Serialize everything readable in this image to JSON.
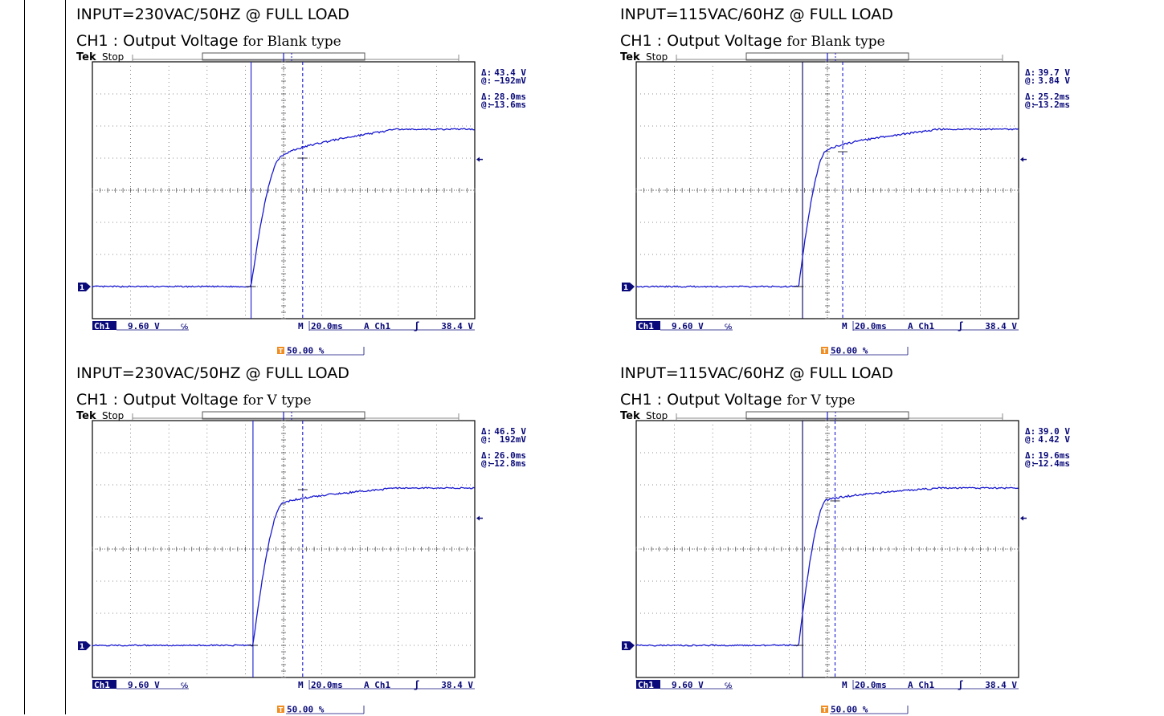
{
  "chart_data": [
    {
      "type": "line",
      "heading": "INPUT=230VAC/50HZ @ FULL LOAD",
      "subtitle_main": "CH1 : Output Voltage",
      "subtitle_suffix": "for Blank type",
      "scope": {
        "brand": "Tek",
        "state": "Stop",
        "ch_label": "Ch1",
        "ch_scale": "9.60 V",
        "bw_symbol": "℅",
        "timebase": "M 20.0ms",
        "trig_src": "A  Ch1",
        "trig_slope": "ʃ",
        "trig_level": "38.4 V",
        "trig_pos": "50.00 %",
        "meas_delta_v_sym": "Δ:",
        "meas_delta_v": "43.4 V",
        "meas_at_v_sym": "@:",
        "meas_at_v": "−192mV",
        "meas_delta_t_sym": "Δ:",
        "meas_delta_t": "28.0ms",
        "meas_at_t_sym": "@:",
        "meas_at_t": "−13.6ms",
        "ch_marker": "1",
        "trig_marker": "T"
      },
      "trace": {
        "start_div": 4.15,
        "rise_div": 0.75,
        "base_div": 0.0,
        "knee_div": 4.0,
        "final_div": 4.9
      },
      "cursor_left_div": 4.15,
      "cursor_right_div": 5.5
    },
    {
      "type": "line",
      "heading": "INPUT=115VAC/60HZ @ FULL LOAD",
      "subtitle_main": "CH1 : Output Voltage",
      "subtitle_suffix": "for Blank type",
      "scope": {
        "brand": "Tek",
        "state": "Stop",
        "ch_label": "Ch1",
        "ch_scale": "9.60 V",
        "bw_symbol": "℅",
        "timebase": "M 20.0ms",
        "trig_src": "A  Ch1",
        "trig_slope": "ʃ",
        "trig_level": "38.4 V",
        "trig_pos": "50.00 %",
        "meas_delta_v_sym": "Δ:",
        "meas_delta_v": "39.7 V",
        "meas_at_v_sym": "@:",
        "meas_at_v": "3.84 V",
        "meas_delta_t_sym": "Δ:",
        "meas_delta_t": "25.2ms",
        "meas_at_t_sym": "@:",
        "meas_at_t": "−13.2ms",
        "ch_marker": "1",
        "trig_marker": "T"
      },
      "trace": {
        "start_div": 4.25,
        "rise_div": 0.7,
        "base_div": 0.0,
        "knee_div": 4.2,
        "final_div": 4.9
      },
      "cursor_left_div": 4.35,
      "cursor_right_div": 5.4
    },
    {
      "type": "line",
      "heading": "INPUT=230VAC/50HZ @ FULL LOAD",
      "subtitle_main": "CH1 : Output Voltage",
      "subtitle_suffix": "for  V type",
      "scope": {
        "brand": "Tek",
        "state": "Stop",
        "ch_label": "Ch1",
        "ch_scale": "9.60 V",
        "bw_symbol": "℅",
        "timebase": "M 20.0ms",
        "trig_src": "A  Ch1",
        "trig_slope": "ʃ",
        "trig_level": "38.4 V",
        "trig_pos": "50.00 %",
        "meas_delta_v_sym": "Δ:",
        "meas_delta_v": "46.5 V",
        "meas_at_v_sym": "@:",
        "meas_at_v": "192mV",
        "meas_delta_t_sym": "Δ:",
        "meas_delta_t": "26.0ms",
        "meas_at_t_sym": "@:",
        "meas_at_t": "−12.8ms",
        "ch_marker": "1",
        "trig_marker": "T"
      },
      "trace": {
        "start_div": 4.2,
        "rise_div": 0.75,
        "base_div": 0.0,
        "knee_div": 4.4,
        "final_div": 4.9
      },
      "cursor_left_div": 4.2,
      "cursor_right_div": 5.5
    },
    {
      "type": "line",
      "heading": "INPUT=115VAC/60HZ @ FULL LOAD",
      "subtitle_main": "CH1 : Output Voltage",
      "subtitle_suffix": "for  V type",
      "scope": {
        "brand": "Tek",
        "state": "Stop",
        "ch_label": "Ch1",
        "ch_scale": "9.60 V",
        "bw_symbol": "℅",
        "timebase": "M 20.0ms",
        "trig_src": "A  Ch1",
        "trig_slope": "ʃ",
        "trig_level": "38.4 V",
        "trig_pos": "50.00 %",
        "meas_delta_v_sym": "Δ:",
        "meas_delta_v": "39.0 V",
        "meas_at_v_sym": "@:",
        "meas_at_v": "4.42 V",
        "meas_delta_t_sym": "Δ:",
        "meas_delta_t": "19.6ms",
        "meas_at_t_sym": "@:",
        "meas_at_t": "−12.4ms",
        "ch_marker": "1",
        "trig_marker": "T"
      },
      "trace": {
        "start_div": 4.25,
        "rise_div": 0.7,
        "base_div": 0.0,
        "knee_div": 4.5,
        "final_div": 4.9
      },
      "cursor_left_div": 4.35,
      "cursor_right_div": 5.2
    }
  ]
}
